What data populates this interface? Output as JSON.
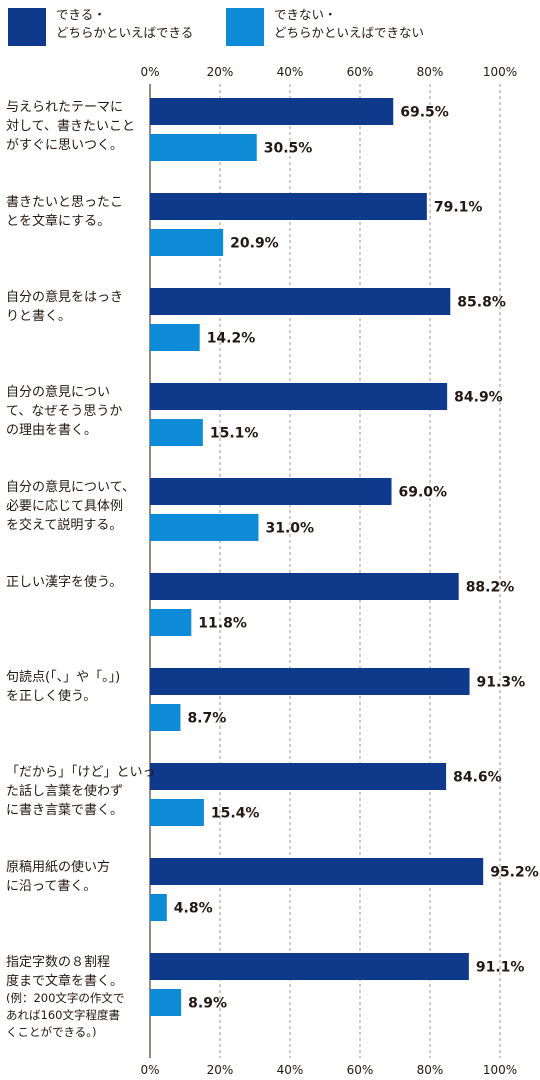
{
  "legend": [
    {
      "label": "できる・\nどちらかといえばできる",
      "color": "#0f3a8c"
    },
    {
      "label": "できない・\nどちらかといえばできない",
      "color": "#0d8bd6"
    }
  ],
  "chart_data": {
    "type": "bar",
    "orientation": "horizontal",
    "title": "",
    "xlabel": "",
    "ylabel": "",
    "xlim": [
      0,
      100
    ],
    "ticks": [
      "0%",
      "20%",
      "40%",
      "60%",
      "80%",
      "100%"
    ],
    "grid": true,
    "legend_placement": "top-left",
    "value_suffix": "%",
    "categories": [
      "与えられたテーマに\n対して、書きたいこと\nがすぐに思いつく。",
      "書きたいと思ったこ\nとを文章にする。",
      "自分の意見をはっき\nりと書く。",
      "自分の意見につい\nて、なぜそう思うか\nの理由を書く。",
      "自分の意見について、\n必要に応じて具体例\nを交えて説明する。",
      "正しい漢字を使う。",
      "句読点(「、」や「。」)\nを正しく使う。",
      "「だから」「けど」といっ\nた話し言葉を使わず\nに書き言葉で書く。",
      "原稿用紙の使い方\nに沿って書く。",
      "指定字数の８割程\n度まで文章を書く。"
    ],
    "category_notes": [
      "",
      "",
      "",
      "",
      "",
      "",
      "",
      "",
      "",
      "(例：200文字の作文で\nあれば160文字程度書\nくことができる。)"
    ],
    "series": [
      {
        "name": "できる・どちらかといえばできる",
        "color": "#0f3a8c",
        "values": [
          69.5,
          79.1,
          85.8,
          84.9,
          69.0,
          88.2,
          91.3,
          84.6,
          95.2,
          91.1
        ]
      },
      {
        "name": "できない・どちらかといえばできない",
        "color": "#0d8bd6",
        "values": [
          30.5,
          20.9,
          14.2,
          15.1,
          31.0,
          11.8,
          8.7,
          15.4,
          4.8,
          8.9
        ]
      }
    ]
  }
}
